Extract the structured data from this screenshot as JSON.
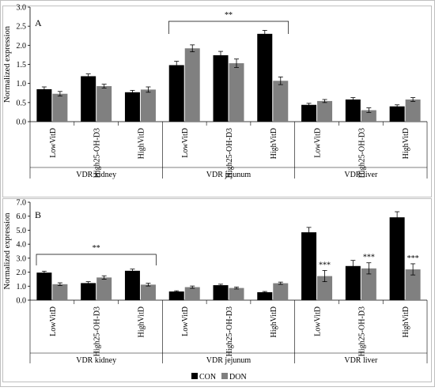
{
  "chart_data": [
    {
      "type": "bar",
      "panel_label": "A",
      "ylabel": "Normalized expression",
      "ylim": [
        0,
        3.0
      ],
      "yticks": [
        "0.0",
        "0.5",
        "1.0",
        "1.5",
        "2.0",
        "2.5",
        "3.0"
      ],
      "grid": false,
      "groups": [
        "VDR kidney",
        "VDR jejunum",
        "VDR liver"
      ],
      "categories": [
        "LowVitD",
        "High25-OH-D3",
        "HighVitD",
        "LowVitD",
        "High25-OH-D3",
        "HighVitD",
        "LowVitD",
        "High25-OH-D3",
        "HighVitD"
      ],
      "series": [
        {
          "name": "CON",
          "values": [
            0.85,
            1.19,
            0.77,
            1.48,
            1.74,
            2.3,
            0.44,
            0.58,
            0.4
          ],
          "errors": [
            0.06,
            0.06,
            0.05,
            0.1,
            0.1,
            0.09,
            0.04,
            0.05,
            0.04
          ]
        },
        {
          "name": "DON",
          "values": [
            0.73,
            0.93,
            0.84,
            1.92,
            1.53,
            1.07,
            0.54,
            0.3,
            0.58
          ],
          "errors": [
            0.06,
            0.05,
            0.07,
            0.09,
            0.11,
            0.1,
            0.04,
            0.06,
            0.05
          ]
        }
      ],
      "annotations": [
        {
          "text": "**",
          "from_category": 3,
          "to_category": 5
        }
      ]
    },
    {
      "type": "bar",
      "panel_label": "B",
      "ylabel": "Normalized expression",
      "ylim": [
        0,
        7.0
      ],
      "yticks": [
        "0.0",
        "1.0",
        "2.0",
        "3.0",
        "4.0",
        "5.0",
        "6.0",
        "7.0"
      ],
      "grid": false,
      "groups": [
        "VDR kidney",
        "VDR jejunum",
        "VDR liver"
      ],
      "categories": [
        "LowVitD",
        "High25-OH-D3",
        "HighVitD",
        "LowVitD",
        "High25-OH-D3",
        "HighVitD",
        "LowVitD",
        "High25-OH-D3",
        "HighVitD"
      ],
      "series": [
        {
          "name": "CON",
          "values": [
            1.97,
            1.22,
            2.1,
            0.62,
            1.07,
            0.57,
            4.85,
            2.44,
            5.92
          ],
          "errors": [
            0.1,
            0.1,
            0.12,
            0.05,
            0.07,
            0.05,
            0.35,
            0.4,
            0.4
          ]
        },
        {
          "name": "DON",
          "values": [
            1.14,
            1.62,
            1.11,
            0.93,
            0.87,
            1.21,
            1.72,
            2.27,
            2.2
          ],
          "errors": [
            0.1,
            0.12,
            0.1,
            0.08,
            0.07,
            0.08,
            0.4,
            0.4,
            0.4
          ]
        }
      ],
      "significance": [
        "",
        "",
        "",
        "",
        "",
        "",
        "***",
        "***",
        "***"
      ],
      "annotations": [
        {
          "text": "**",
          "from_category": 0,
          "to_category": 2
        }
      ]
    }
  ],
  "legend": {
    "placement": "bottom",
    "items": [
      {
        "label": "CON",
        "color": "#000000"
      },
      {
        "label": "DON",
        "color": "#808080"
      }
    ]
  }
}
